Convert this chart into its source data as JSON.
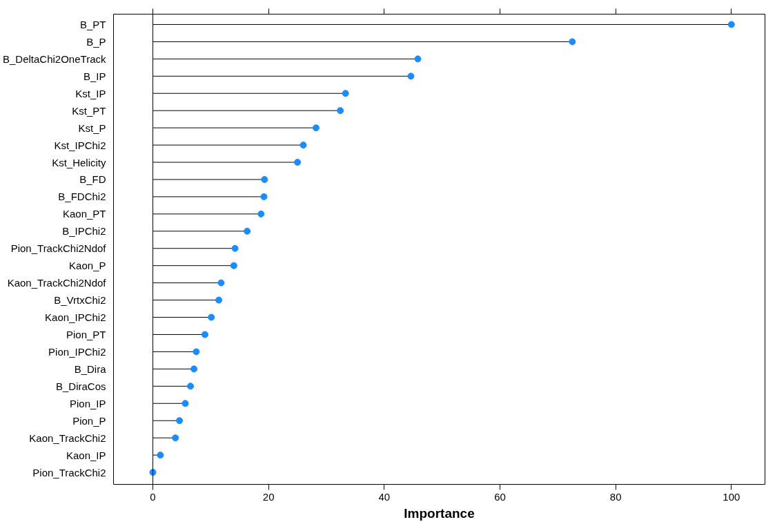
{
  "chart_data": {
    "type": "lollipop",
    "orientation": "horizontal",
    "xlabel": "Importance",
    "categories": [
      "B_PT",
      "B_P",
      "B_DeltaChi2OneTrack",
      "B_IP",
      "Kst_IP",
      "Kst_PT",
      "Kst_P",
      "Kst_IPChi2",
      "Kst_Helicity",
      "B_FD",
      "B_FDChi2",
      "Kaon_PT",
      "B_IPChi2",
      "Pion_TrackChi2Ndof",
      "Kaon_P",
      "Kaon_TrackChi2Ndof",
      "B_VrtxChi2",
      "Kaon_IPChi2",
      "Pion_PT",
      "Pion_IPChi2",
      "B_Dira",
      "B_DiraCos",
      "Pion_IP",
      "Pion_P",
      "Kaon_TrackChi2",
      "Kaon_IP",
      "Pion_TrackChi2"
    ],
    "values": [
      100,
      72.5,
      45.8,
      44.6,
      33.3,
      32.4,
      28.2,
      26.0,
      25.0,
      19.3,
      19.2,
      18.7,
      16.3,
      14.2,
      14.0,
      11.8,
      11.4,
      10.1,
      9.0,
      7.5,
      7.1,
      6.5,
      5.6,
      4.6,
      3.9,
      1.3,
      0
    ],
    "color": "#1a8cff",
    "marker": "circle",
    "grid": false,
    "xlim": [
      -6.8,
      105.8
    ],
    "xticks": [
      0,
      20,
      40,
      60,
      80,
      100
    ],
    "ref_lines": [
      {
        "axis": "x",
        "value": 0,
        "label": null,
        "color": "#000000"
      }
    ]
  }
}
